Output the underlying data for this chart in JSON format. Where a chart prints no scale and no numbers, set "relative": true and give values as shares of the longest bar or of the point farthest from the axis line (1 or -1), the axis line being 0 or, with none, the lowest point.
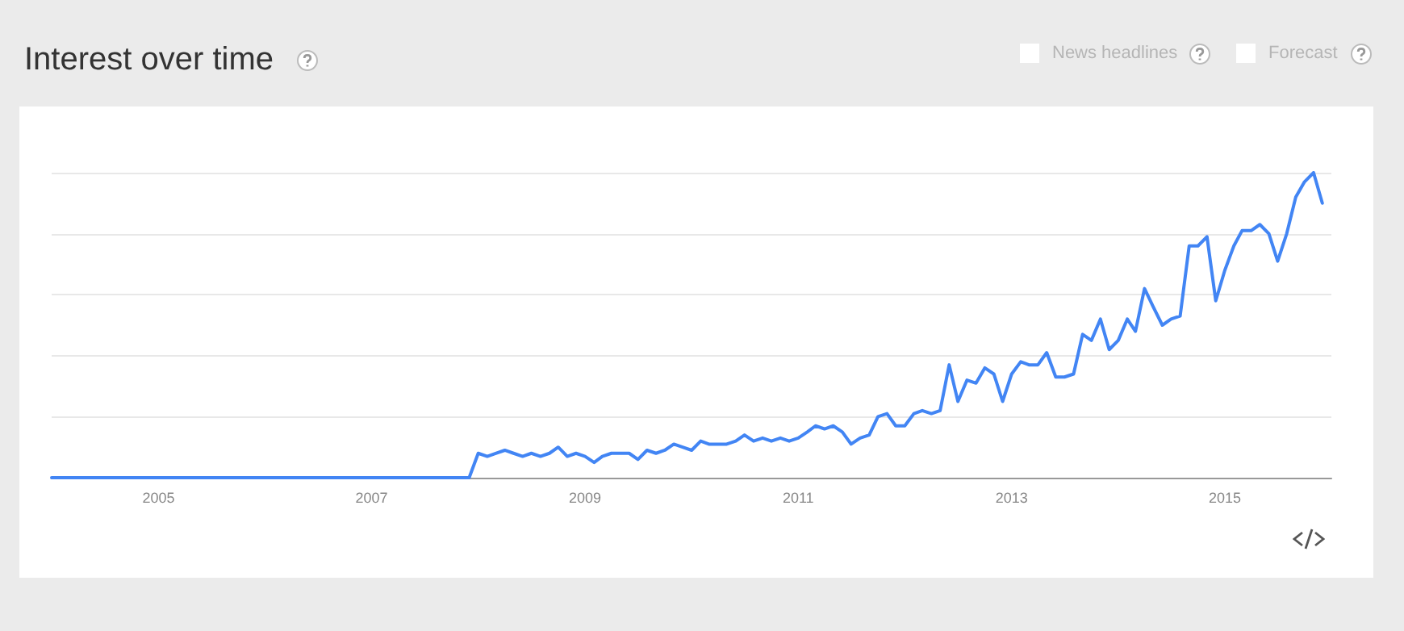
{
  "chart_data": {
    "type": "line",
    "title": "Interest over time",
    "relative": true,
    "grid": "y",
    "marker": "none",
    "line_style": "solid",
    "annotations": [
      "News headlines",
      "Forecast"
    ],
    "xlim": [
      "2004-01",
      "2016-01"
    ],
    "xticks": [
      "2005",
      "2007",
      "2009",
      "2011",
      "2013",
      "2015"
    ],
    "x": [
      "2004-01",
      "2007-12",
      "2008-01",
      "2008-02",
      "2008-03",
      "2008-04",
      "2008-05",
      "2008-06",
      "2008-07",
      "2008-08",
      "2008-09",
      "2008-10",
      "2008-11",
      "2008-12",
      "2009-01",
      "2009-02",
      "2009-03",
      "2009-04",
      "2009-05",
      "2009-06",
      "2009-07",
      "2009-08",
      "2009-09",
      "2009-10",
      "2009-11",
      "2009-12",
      "2010-01",
      "2010-02",
      "2010-03",
      "2010-04",
      "2010-05",
      "2010-06",
      "2010-07",
      "2010-08",
      "2010-09",
      "2010-10",
      "2010-11",
      "2010-12",
      "2011-01",
      "2011-02",
      "2011-03",
      "2011-04",
      "2011-05",
      "2011-06",
      "2011-07",
      "2011-08",
      "2011-09",
      "2011-10",
      "2011-11",
      "2011-12",
      "2012-01",
      "2012-02",
      "2012-03",
      "2012-04",
      "2012-05",
      "2012-06",
      "2012-07",
      "2012-08",
      "2012-09",
      "2012-10",
      "2012-11",
      "2012-12",
      "2013-01",
      "2013-02",
      "2013-03",
      "2013-04",
      "2013-05",
      "2013-06",
      "2013-07",
      "2013-08",
      "2013-09",
      "2013-10",
      "2013-11",
      "2013-12",
      "2014-01",
      "2014-02",
      "2014-03",
      "2014-04",
      "2014-05",
      "2014-06",
      "2014-07",
      "2014-08",
      "2014-09",
      "2014-10",
      "2014-11",
      "2014-12",
      "2015-01",
      "2015-02",
      "2015-03",
      "2015-04",
      "2015-05",
      "2015-06",
      "2015-07",
      "2015-08",
      "2015-09",
      "2015-10",
      "2015-11",
      "2015-12"
    ],
    "series": [
      {
        "color": "#4285f4",
        "values": [
          0,
          0,
          0.08,
          0.07,
          0.08,
          0.09,
          0.08,
          0.07,
          0.08,
          0.07,
          0.08,
          0.1,
          0.07,
          0.08,
          0.07,
          0.05,
          0.07,
          0.08,
          0.08,
          0.08,
          0.06,
          0.09,
          0.08,
          0.09,
          0.11,
          0.1,
          0.09,
          0.12,
          0.11,
          0.11,
          0.11,
          0.12,
          0.14,
          0.12,
          0.13,
          0.12,
          0.13,
          0.12,
          0.13,
          0.15,
          0.17,
          0.16,
          0.17,
          0.15,
          0.11,
          0.13,
          0.14,
          0.2,
          0.21,
          0.17,
          0.17,
          0.21,
          0.22,
          0.21,
          0.22,
          0.37,
          0.25,
          0.32,
          0.31,
          0.36,
          0.34,
          0.25,
          0.34,
          0.38,
          0.37,
          0.37,
          0.41,
          0.33,
          0.33,
          0.34,
          0.47,
          0.45,
          0.52,
          0.42,
          0.45,
          0.52,
          0.48,
          0.62,
          0.56,
          0.5,
          0.52,
          0.53,
          0.76,
          0.76,
          0.79,
          0.58,
          0.68,
          0.76,
          0.81,
          0.81,
          0.83,
          0.8,
          0.71,
          0.8,
          0.92,
          0.97,
          1.0,
          0.9
        ]
      }
    ]
  }
}
